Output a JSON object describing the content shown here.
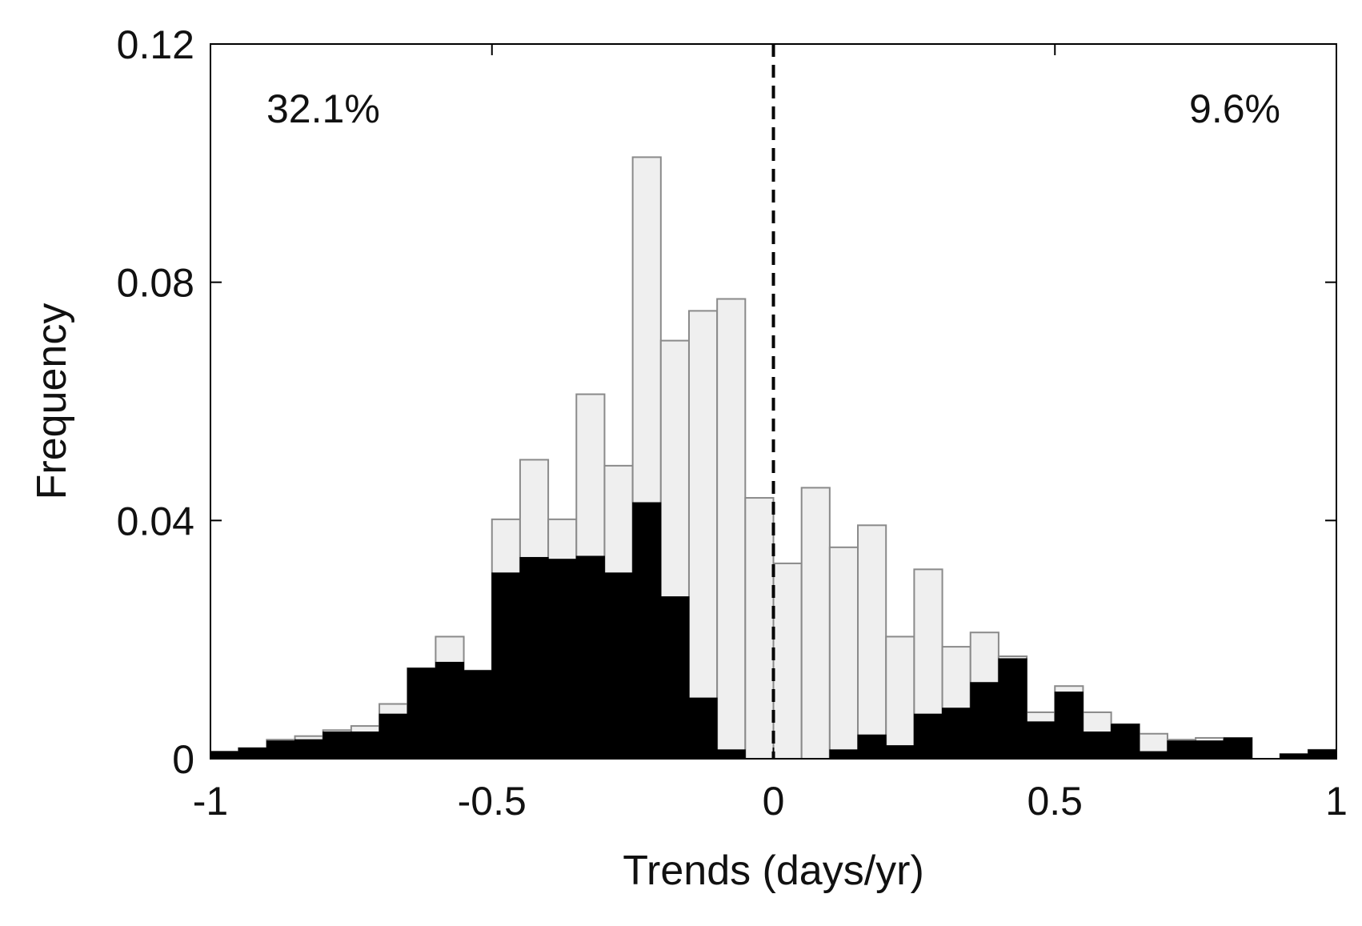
{
  "chart_data": {
    "type": "bar",
    "xlabel": "Trends (days/yr)",
    "ylabel": "Frequency",
    "xlim": [
      -1,
      1
    ],
    "ylim": [
      0,
      0.12
    ],
    "xticks": [
      -1,
      -0.5,
      0,
      0.5,
      1
    ],
    "xtick_labels": [
      "-1",
      "-0.5",
      "0",
      "0.5",
      "1"
    ],
    "yticks": [
      0,
      0.04,
      0.08,
      0.12
    ],
    "ytick_labels": [
      "0",
      "0.04",
      "0.08",
      "0.12"
    ],
    "grid": false,
    "bin_width": 0.05,
    "bin_centers": [
      -0.975,
      -0.925,
      -0.875,
      -0.825,
      -0.775,
      -0.725,
      -0.675,
      -0.625,
      -0.575,
      -0.525,
      -0.475,
      -0.425,
      -0.375,
      -0.325,
      -0.275,
      -0.225,
      -0.175,
      -0.125,
      -0.075,
      -0.025,
      0.025,
      0.075,
      0.125,
      0.175,
      0.225,
      0.275,
      0.325,
      0.375,
      0.425,
      0.475,
      0.525,
      0.575,
      0.625,
      0.675,
      0.725,
      0.775,
      0.825,
      0.875,
      0.925,
      0.975
    ],
    "series": [
      {
        "fill": "#efefef",
        "stroke": "#8a8a8a",
        "values": [
          0.0012,
          0.0018,
          0.0032,
          0.0038,
          0.0048,
          0.0055,
          0.0092,
          0.0152,
          0.0205,
          0.0148,
          0.0402,
          0.0502,
          0.0402,
          0.0612,
          0.0492,
          0.101,
          0.0702,
          0.0752,
          0.0772,
          0.0438,
          0.0328,
          0.0455,
          0.0355,
          0.0392,
          0.0205,
          0.0318,
          0.0188,
          0.0212,
          0.0172,
          0.0078,
          0.0122,
          0.0078,
          0.0058,
          0.0042,
          0.0032,
          0.0035,
          0.0035,
          0.0,
          0.0008,
          0.0015
        ]
      },
      {
        "fill": "#000000",
        "stroke": "#000000",
        "values": [
          0.0012,
          0.0018,
          0.003,
          0.0032,
          0.0045,
          0.0045,
          0.0075,
          0.0152,
          0.0162,
          0.0148,
          0.0312,
          0.0338,
          0.0335,
          0.034,
          0.0312,
          0.043,
          0.0272,
          0.0102,
          0.0015,
          0.0,
          0.0,
          0.0,
          0.0015,
          0.004,
          0.0022,
          0.0075,
          0.0085,
          0.0128,
          0.0168,
          0.0062,
          0.0112,
          0.0045,
          0.0058,
          0.0012,
          0.003,
          0.003,
          0.0035,
          0.0,
          0.0008,
          0.0015
        ]
      }
    ],
    "reference_line": {
      "x": 0,
      "style": "dashed",
      "color": "#000000"
    },
    "annotations": [
      {
        "text": "32.1%",
        "position": "top-left"
      },
      {
        "text": "9.6%",
        "position": "top-right"
      }
    ]
  }
}
